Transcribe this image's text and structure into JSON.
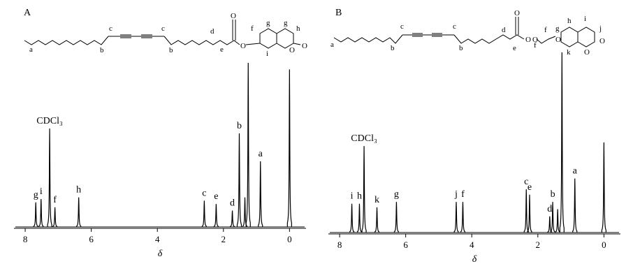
{
  "chart_data": [
    {
      "type": "spectrum",
      "panel_label": "A",
      "x_label": "δ",
      "xlim": [
        8.34,
        -0.5
      ],
      "xticks": [
        8,
        6,
        4,
        2,
        0
      ],
      "ylim": [
        0,
        100
      ],
      "color": "#000000",
      "peaks": {
        "x": [
          7.68,
          7.52,
          7.26,
          7.1,
          6.38,
          2.58,
          2.22,
          1.73,
          1.52,
          1.35,
          1.25,
          0.88,
          0.0
        ],
        "values": [
          15,
          17,
          60,
          12,
          18,
          16,
          14,
          10,
          57,
          18,
          100,
          40,
          96
        ],
        "labels": [
          "g",
          "i",
          "CDCl₃",
          "f",
          "h",
          "c",
          "e",
          "d",
          "b",
          null,
          null,
          "a",
          null
        ]
      },
      "structure_labels": [
        "a",
        "b",
        "c",
        "c",
        "b",
        "d",
        "e",
        "f",
        "g",
        "g",
        "h",
        "i",
        "O",
        "O",
        "O",
        "O"
      ]
    },
    {
      "type": "spectrum",
      "panel_label": "B",
      "x_label": "δ",
      "xlim": [
        8.34,
        -0.5
      ],
      "xticks": [
        8,
        6,
        4,
        2,
        0
      ],
      "ylim": [
        0,
        100
      ],
      "color": "#000000",
      "peaks": {
        "x": [
          7.63,
          7.4,
          7.26,
          6.87,
          6.28,
          4.47,
          4.27,
          2.35,
          2.25,
          1.64,
          1.55,
          1.4,
          1.27,
          0.88,
          0.0
        ],
        "values": [
          16,
          16,
          48,
          14,
          17,
          17,
          17,
          24,
          21,
          9,
          17,
          13,
          100,
          30,
          50
        ],
        "labels": [
          "i",
          "h",
          "CDCl₃",
          "k",
          "g",
          "j",
          "f",
          "c",
          "e",
          "d",
          "b",
          null,
          null,
          "a",
          null
        ]
      },
      "structure_labels": [
        "a",
        "b",
        "c",
        "c",
        "b",
        "d",
        "e",
        "f",
        "f",
        "g",
        "h",
        "i",
        "j",
        "k",
        "O",
        "O",
        "O",
        "O",
        "O",
        "O"
      ]
    }
  ]
}
